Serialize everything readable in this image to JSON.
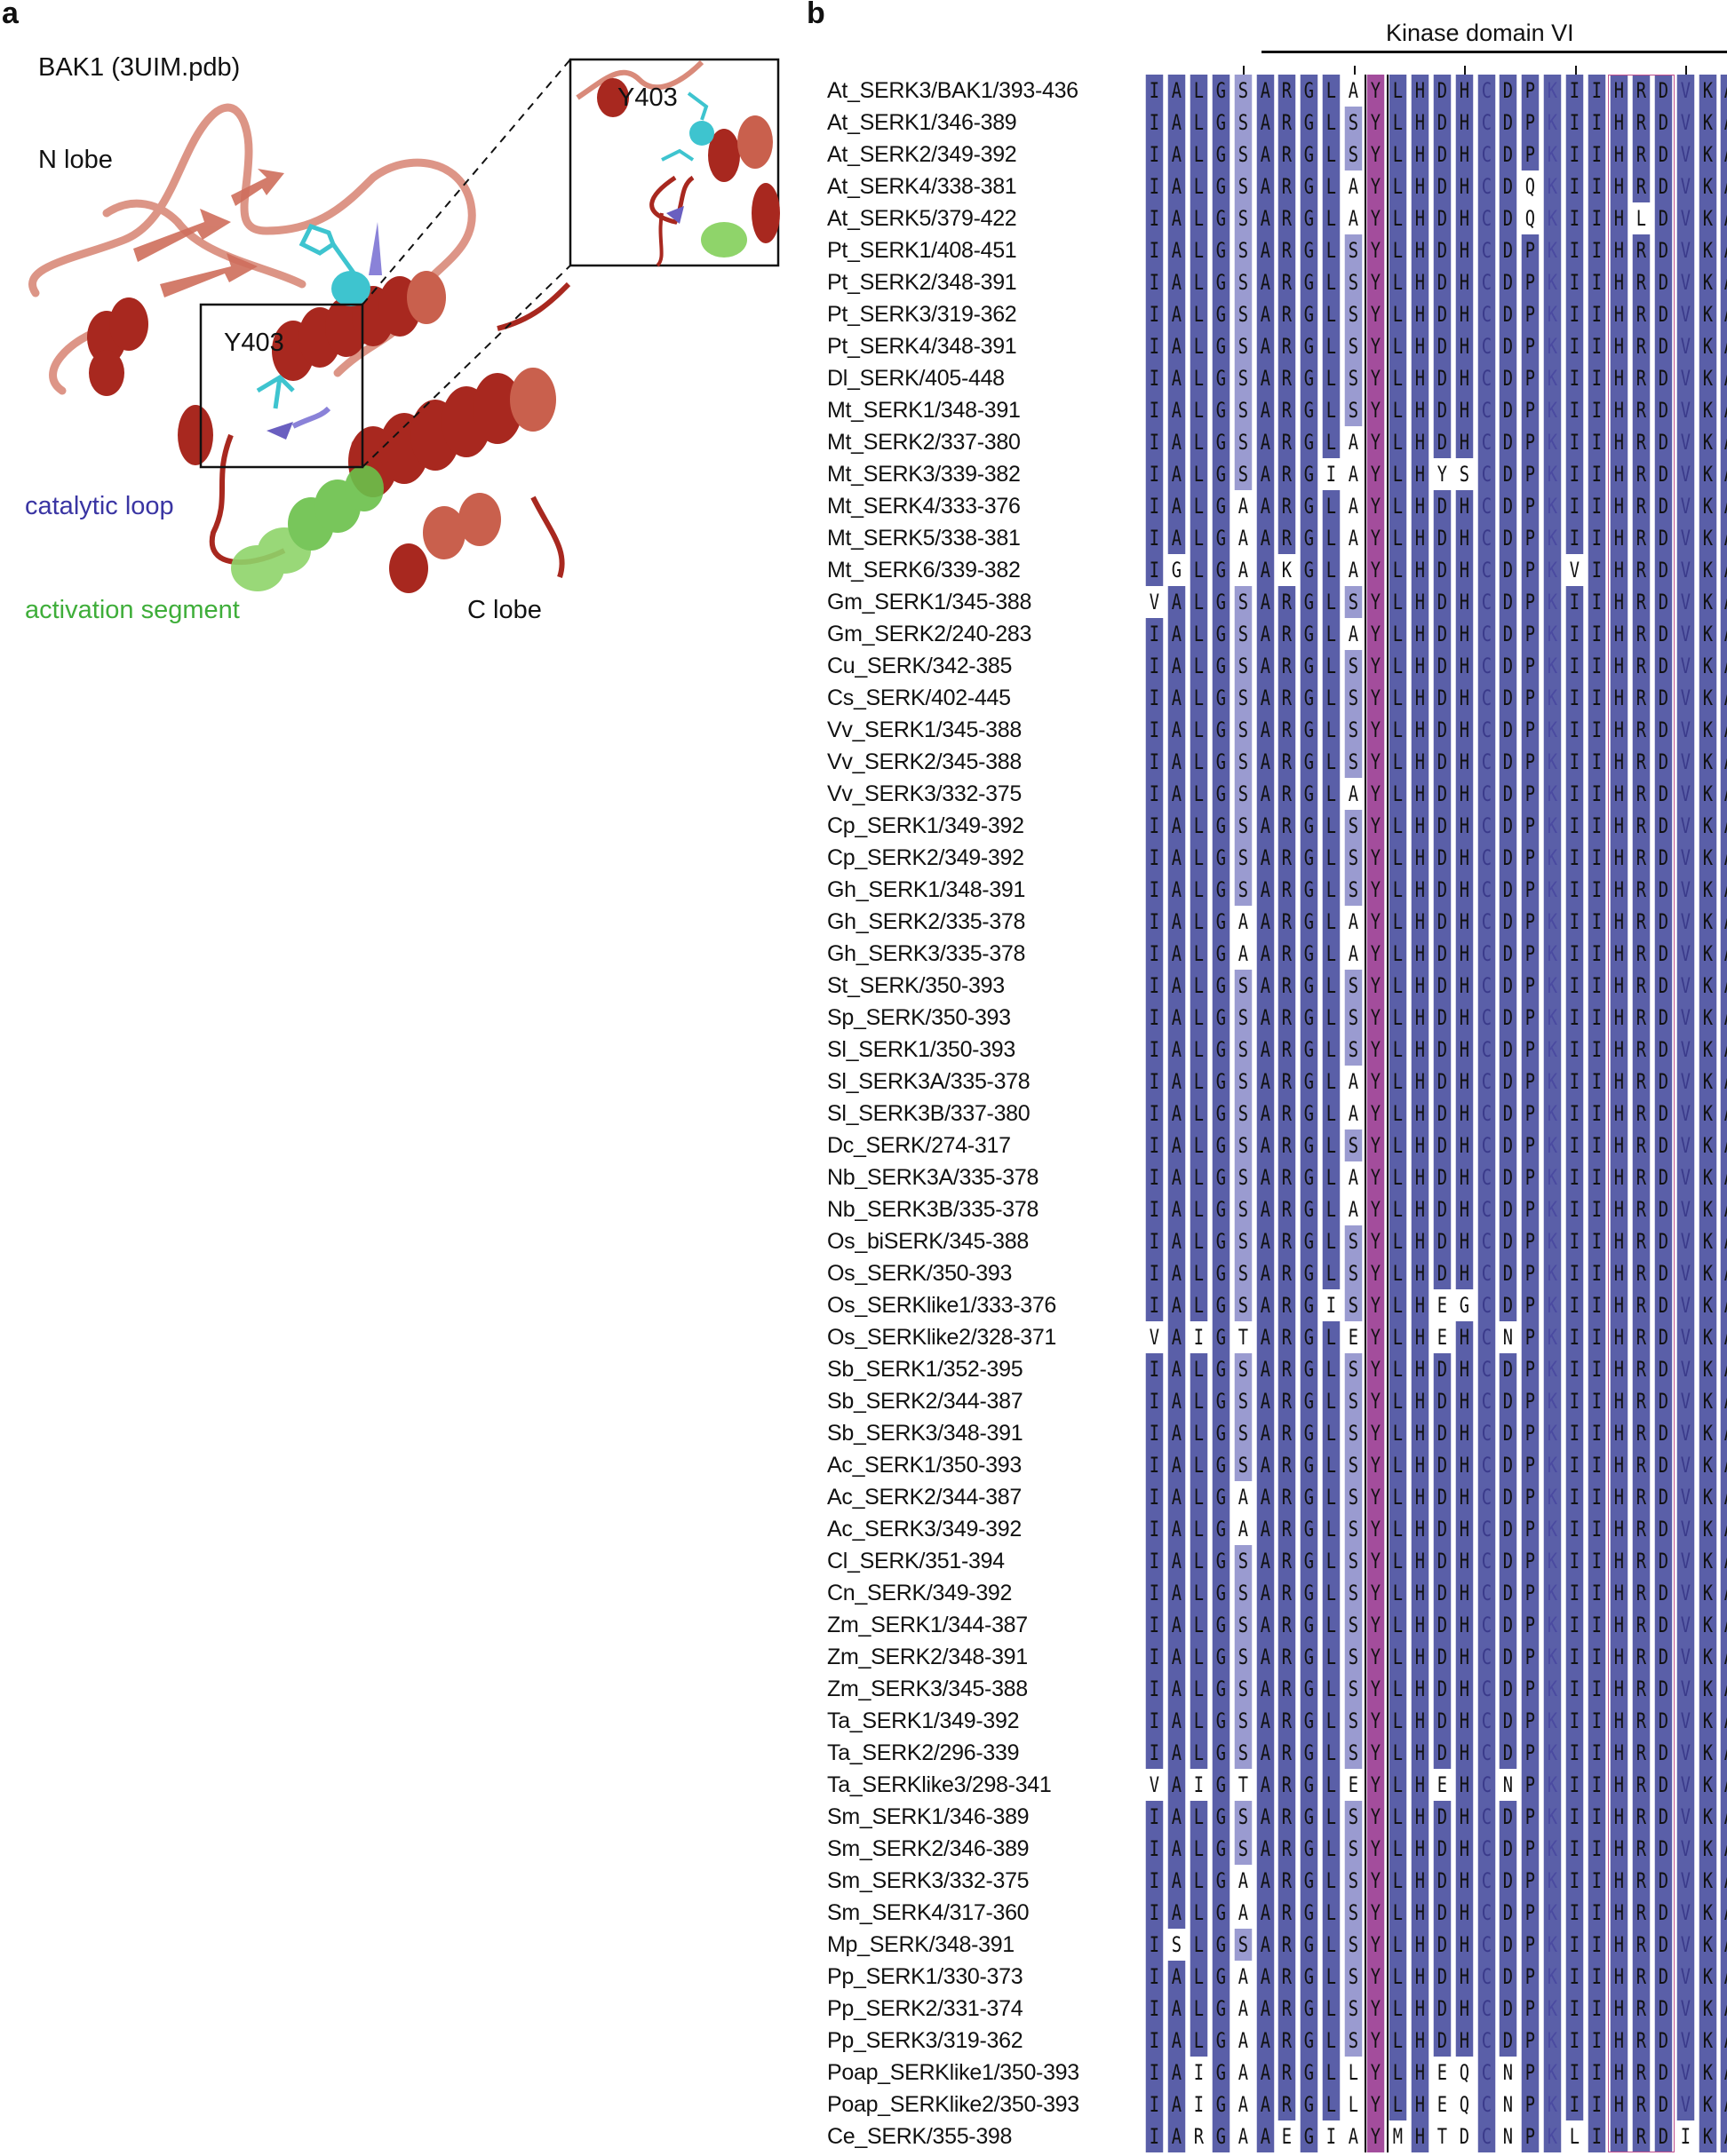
{
  "panel_a": {
    "letter": "a",
    "title": "BAK1 (3UIM.pdb)",
    "n_lobe": "N lobe",
    "c_lobe": "C lobe",
    "catalytic_loop": "catalytic loop",
    "activation_segment": "activation segment",
    "residue_label": "Y403",
    "inset_residue_label": "Y403",
    "colors": {
      "catalytic_loop": "#3a35a3",
      "activation_segment": "#3fae3a",
      "helix": "#a8281f",
      "loop": "#d98a7a",
      "tyrosine": "#3ec4cf"
    }
  },
  "panel_b": {
    "letter": "b",
    "domain_label": "Kinase domain VI",
    "colors": {
      "conserved": "#5a5fa8",
      "partial": "#9a9bd0",
      "variant": "#ffffff",
      "tyrosine": "#a34d9c",
      "hrd_box": "#c04f8f",
      "y_box": "#000000"
    },
    "rows": [
      {
        "name": "At_SERK3/BAK1/393-436",
        "seq": "IALGSARGLAYLHDHCDPKIIHRDVKA"
      },
      {
        "name": "At_SERK1/346-389",
        "seq": "IALGSARGLSYLHDHCDPKIIHRDVKA"
      },
      {
        "name": "At_SERK2/349-392",
        "seq": "IALGSARGLSYLHDHCDPKIIHRDVKA"
      },
      {
        "name": "At_SERK4/338-381",
        "seq": "IALGSARGLAYLHDHCDQKIIHRDVKA"
      },
      {
        "name": "At_SERK5/379-422",
        "seq": "IALGSARGLAYLHDHCDQKIIHLDVKA"
      },
      {
        "name": "Pt_SERK1/408-451",
        "seq": "IALGSARGLSYLHDHCDPKIIHRDVKA"
      },
      {
        "name": "Pt_SERK2/348-391",
        "seq": "IALGSARGLSYLHDHCDPKIIHRDVKA"
      },
      {
        "name": "Pt_SERK3/319-362",
        "seq": "IALGSARGLSYLHDHCDPKIIHRDVKA"
      },
      {
        "name": "Pt_SERK4/348-391",
        "seq": "IALGSARGLSYLHDHCDPKIIHRDVKA"
      },
      {
        "name": "Dl_SERK/405-448",
        "seq": "IALGSARGLSYLHDHCDPKIIHRDVKA"
      },
      {
        "name": "Mt_SERK1/348-391",
        "seq": "IALGSARGLSYLHDHCDPKIIHRDVKA"
      },
      {
        "name": "Mt_SERK2/337-380",
        "seq": "IALGSARGLAYLHDHCDPKIIHRDVKA"
      },
      {
        "name": "Mt_SERK3/339-382",
        "seq": "IALGSARGIAYLHYSCDPKIIHRDVKA"
      },
      {
        "name": "Mt_SERK4/333-376",
        "seq": "IALGAARGLAYLHDHCDPKIIHRDVKA"
      },
      {
        "name": "Mt_SERK5/338-381",
        "seq": "IALGAARGLAYLHDHCDPKIIHRDVKA"
      },
      {
        "name": "Mt_SERK6/339-382",
        "seq": "IGLGAAKGLAYLHDHCDPKVIHRDVKA"
      },
      {
        "name": "Gm_SERK1/345-388",
        "seq": "VALGSARGLSYLHDHCDPKIIHRDVKA"
      },
      {
        "name": "Gm_SERK2/240-283",
        "seq": "IALGSARGLAYLHDHCDPKIIHRDVKA"
      },
      {
        "name": "Cu_SERK/342-385",
        "seq": "IALGSARGLSYLHDHCDPKIIHRDVKA"
      },
      {
        "name": "Cs_SERK/402-445",
        "seq": "IALGSARGLSYLHDHCDPKIIHRDVKA"
      },
      {
        "name": "Vv_SERK1/345-388",
        "seq": "IALGSARGLSYLHDHCDPKIIHRDVKA"
      },
      {
        "name": "Vv_SERK2/345-388",
        "seq": "IALGSARGLSYLHDHCDPKIIHRDVKA"
      },
      {
        "name": "Vv_SERK3/332-375",
        "seq": "IALGSARGLAYLHDHCDPKIIHRDVKA"
      },
      {
        "name": "Cp_SERK1/349-392",
        "seq": "IALGSARGLSYLHDHCDPKIIHRDVKA"
      },
      {
        "name": "Cp_SERK2/349-392",
        "seq": "IALGSARGLSYLHDHCDPKIIHRDVKA"
      },
      {
        "name": "Gh_SERK1/348-391",
        "seq": "IALGSARGLSYLHDHCDPKIIHRDVKA"
      },
      {
        "name": "Gh_SERK2/335-378",
        "seq": "IALGAARGLAYLHDHCDPKIIHRDVKA"
      },
      {
        "name": "Gh_SERK3/335-378",
        "seq": "IALGAARGLAYLHDHCDPKIIHRDVKA"
      },
      {
        "name": "St_SERK/350-393",
        "seq": "IALGSARGLSYLHDHCDPKIIHRDVKA"
      },
      {
        "name": "Sp_SERK/350-393",
        "seq": "IALGSARGLSYLHDHCDPKIIHRDVKA"
      },
      {
        "name": "Sl_SERK1/350-393",
        "seq": "IALGSARGLSYLHDHCDPKIIHRDVKA"
      },
      {
        "name": "Sl_SERK3A/335-378",
        "seq": "IALGSARGLAYLHDHCDPKIIHRDVKA"
      },
      {
        "name": "Sl_SERK3B/337-380",
        "seq": "IALGSARGLAYLHDHCDPKIIHRDVKA"
      },
      {
        "name": "Dc_SERK/274-317",
        "seq": "IALGSARGLSYLHDHCDPKIIHRDVKA"
      },
      {
        "name": "Nb_SERK3A/335-378",
        "seq": "IALGSARGLAYLHDHCDPKIIHRDVKA"
      },
      {
        "name": "Nb_SERK3B/335-378",
        "seq": "IALGSARGLAYLHDHCDPKIIHRDVKA"
      },
      {
        "name": "Os_biSERK/345-388",
        "seq": "IALGSARGLSYLHDHCDPKIIHRDVKA"
      },
      {
        "name": "Os_SERK/350-393",
        "seq": "IALGSARGLSYLHDHCDPKIIHRDVKA"
      },
      {
        "name": "Os_SERKlike1/333-376",
        "seq": "IALGSARGISYLHEGCDPKIIHRDVKA"
      },
      {
        "name": "Os_SERKlike2/328-371",
        "seq": "VAIGTARGLEYLHEHCNPKIIHRDVKA"
      },
      {
        "name": "Sb_SERK1/352-395",
        "seq": "IALGSARGLSYLHDHCDPKIIHRDVKA"
      },
      {
        "name": "Sb_SERK2/344-387",
        "seq": "IALGSARGLSYLHDHCDPKIIHRDVKA"
      },
      {
        "name": "Sb_SERK3/348-391",
        "seq": "IALGSARGLSYLHDHCDPKIIHRDVKA"
      },
      {
        "name": "Ac_SERK1/350-393",
        "seq": "IALGSARGLSYLHDHCDPKIIHRDVKA"
      },
      {
        "name": "Ac_SERK2/344-387",
        "seq": "IALGAARGLSYLHDHCDPKIIHRDVKA"
      },
      {
        "name": "Ac_SERK3/349-392",
        "seq": "IALGAARGLSYLHDHCDPKIIHRDVKA"
      },
      {
        "name": "Cl_SERK/351-394",
        "seq": "IALGSARGLSYLHDHCDPKIIHRDVKA"
      },
      {
        "name": "Cn_SERK/349-392",
        "seq": "IALGSARGLSYLHDHCDPKIIHRDVKA"
      },
      {
        "name": "Zm_SERK1/344-387",
        "seq": "IALGSARGLSYLHDHCDPKIIHRDVKA"
      },
      {
        "name": "Zm_SERK2/348-391",
        "seq": "IALGSARGLSYLHDHCDPKIIHRDVKA"
      },
      {
        "name": "Zm_SERK3/345-388",
        "seq": "IALGSARGLSYLHDHCDPKIIHRDVKA"
      },
      {
        "name": "Ta_SERK1/349-392",
        "seq": "IALGSARGLSYLHDHCDPKIIHRDVKA"
      },
      {
        "name": "Ta_SERK2/296-339",
        "seq": "IALGSARGLSYLHDHCDPKIIHRDVKA"
      },
      {
        "name": "Ta_SERKlike3/298-341",
        "seq": "VAIGTARGLEYLHEHCNPKIIHRDVKA"
      },
      {
        "name": "Sm_SERK1/346-389",
        "seq": "IALGSARGLSYLHDHCDPKIIHRDVKA"
      },
      {
        "name": "Sm_SERK2/346-389",
        "seq": "IALGSARGLSYLHDHCDPKIIHRDVKA"
      },
      {
        "name": "Sm_SERK3/332-375",
        "seq": "IALGAARGLSYLHDHCDPKIIHRDVKA"
      },
      {
        "name": "Sm_SERK4/317-360",
        "seq": "IALGAARGLSYLHDHCDPKIIHRDVKA"
      },
      {
        "name": "Mp_SERK/348-391",
        "seq": "ISLGSARGLSYLHDHCDPKIIHRDVKA"
      },
      {
        "name": "Pp_SERK1/330-373",
        "seq": "IALGAARGLSYLHDHCDPKIIHRDVKA"
      },
      {
        "name": "Pp_SERK2/331-374",
        "seq": "IALGAARGLSYLHDHCDPKIIHRDVKA"
      },
      {
        "name": "Pp_SERK3/319-362",
        "seq": "IALGAARGLSYLHDHCDPKIIHRDVKA"
      },
      {
        "name": "Poap_SERKlike1/350-393",
        "seq": "IAIGAARGLLYLHEQCNPKIIHRDVKA"
      },
      {
        "name": "Poap_SERKlike2/350-393",
        "seq": "IAIGAARGLLYLHEQCNPKIIHRDVKA"
      },
      {
        "name": "Ce_SERK/355-398",
        "seq": "IARGAAEGIAYMHTDCNPKLIHRDIKA"
      }
    ]
  }
}
